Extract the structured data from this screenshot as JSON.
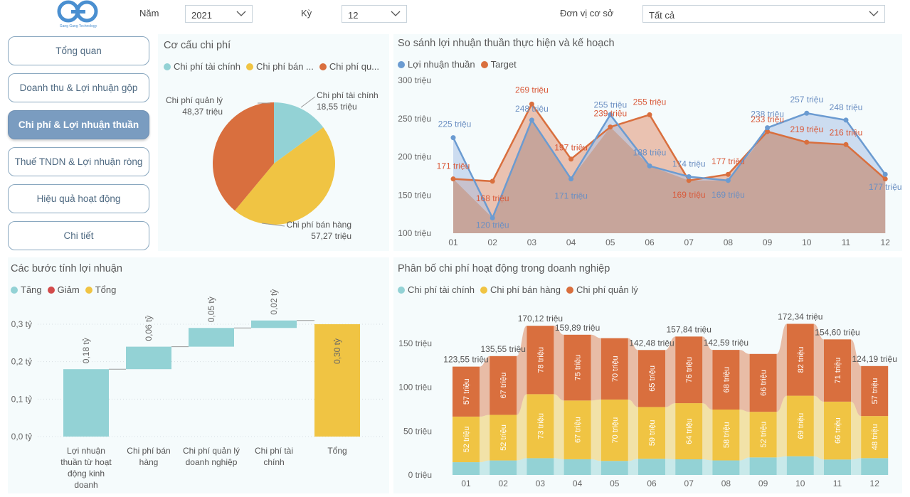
{
  "colors": {
    "teal": "#93d2d5",
    "yellow": "#f0c443",
    "orange": "#d96f3e",
    "blue": "#6b9bd1",
    "red": "#d34b4b",
    "nav_active": "#7a9cc0"
  },
  "header": {
    "logo_text": "Gang Gang Technology",
    "year_label": "Năm",
    "year_value": "2021",
    "period_label": "Kỳ",
    "period_value": "12",
    "unit_label": "Đơn vị cơ sở",
    "unit_value": "Tất cả"
  },
  "nav": [
    {
      "label": "Tổng quan",
      "active": false
    },
    {
      "label": "Doanh thu & Lợi nhuận gộp",
      "active": false
    },
    {
      "label": "Chi phí & Lợi nhuận thuần",
      "active": true
    },
    {
      "label": "Thuế TNDN & Lợi nhuận ròng",
      "active": false
    },
    {
      "label": "Hiệu quả hoạt động",
      "active": false
    },
    {
      "label": "Chi tiết",
      "active": false
    }
  ],
  "pie": {
    "title": "Cơ cấu chi phí",
    "legend": [
      "Chi phí tài chính",
      "Chi phí bán ...",
      "Chi phí qu..."
    ],
    "labels": [
      {
        "name": "Chi phí tài chính",
        "value": "18,55 triệu"
      },
      {
        "name": "Chi phí bán hàng",
        "value": "57,27 triệu"
      },
      {
        "name": "Chi phí quản lý",
        "value": "48,37 triệu"
      }
    ]
  },
  "line": {
    "title": "So sánh lợi nhuận thuần thực hiện và kế hoạch",
    "legend": [
      "Lợi nhuận thuần",
      "Target"
    ],
    "y_ticks": [
      "300 triệu",
      "250 triệu",
      "200 triệu",
      "150 triệu",
      "100 triệu"
    ],
    "x_labels": [
      "01",
      "02",
      "03",
      "04",
      "05",
      "06",
      "07",
      "08",
      "09",
      "10",
      "11",
      "12"
    ],
    "actual_labels": [
      "225 triệu",
      "120 triệu",
      "248 triệu",
      "171 triệu",
      "255 triệu",
      "188 triệu",
      "174 triệu",
      "169 triệu",
      "238 triệu",
      "257 triệu",
      "248 triệu",
      "177 triệu"
    ],
    "target_labels": [
      "171 triệu",
      "168 triệu",
      "269 triệu",
      "197 triệu",
      "239 triệu",
      "255 triệu",
      "169 triệu",
      "177 triệu",
      "233 triệu",
      "219 triệu",
      "216 triệu",
      ""
    ]
  },
  "waterfall": {
    "title": "Các bước tính lợi nhuận",
    "legend": [
      "Tăng",
      "Giảm",
      "Tổng"
    ],
    "y_ticks": [
      "0,3 tỷ",
      "0,2 tỷ",
      "0,1 tỷ",
      "0,0 tỷ"
    ],
    "bar_labels": [
      "0,18 tỷ",
      "0,06 tỷ",
      "0,05 tỷ",
      "0,02 tỷ",
      "0,30 tỷ"
    ],
    "categories": [
      [
        "Lợi nhuận",
        "thuần từ hoạt",
        "động kinh",
        "doanh"
      ],
      [
        "Chi phí bán",
        "hàng"
      ],
      [
        "Chi phí quản lý",
        "doanh nghiệp"
      ],
      [
        "Chi phí tài",
        "chính"
      ],
      [
        "Tổng"
      ]
    ]
  },
  "stacked": {
    "title": "Phân bố chi phí hoạt động trong doanh nghiệp",
    "legend": [
      "Chi phí tài chính",
      "Chi phí bán hàng",
      "Chi phí quản lý"
    ],
    "y_ticks": [
      "150 triệu",
      "100 triệu",
      "50 triệu",
      "0 triệu"
    ],
    "x_labels": [
      "01",
      "02",
      "03",
      "04",
      "05",
      "06",
      "07",
      "08",
      "09",
      "10",
      "11",
      "12"
    ],
    "totals": [
      "123,55 triệu",
      "135,55 triệu",
      "170,12 triệu",
      "159,89 triệu",
      "",
      "142,48 triệu",
      "157,84 triệu",
      "142,59 triệu",
      "",
      "172,34 triệu",
      "154,60 triệu",
      "124,19 triệu"
    ],
    "bottom_labels": [
      "52 triệu",
      "52 triệu",
      "73 triệu",
      "67 triệu",
      "70 triệu",
      "59 triệu",
      "64 triệu",
      "58 triệu",
      "52 triệu",
      "69 triệu",
      "66 triệu",
      "48 triệu"
    ],
    "top_labels": [
      "57 triệu",
      "67 triệu",
      "78 triệu",
      "75 triệu",
      "70 triệu",
      "65 triệu",
      "76 triệu",
      "68 triệu",
      "66 triệu",
      "82 triệu",
      "71 triệu",
      "57 triệu"
    ]
  },
  "chart_data": [
    {
      "type": "pie",
      "title": "Cơ cấu chi phí",
      "categories": [
        "Chi phí tài chính",
        "Chi phí bán hàng",
        "Chi phí quản lý"
      ],
      "values": [
        18.55,
        57.27,
        48.37
      ],
      "legend": "top"
    },
    {
      "type": "line",
      "title": "So sánh lợi nhuận thuần thực hiện và kế hoạch",
      "x": [
        "01",
        "02",
        "03",
        "04",
        "05",
        "06",
        "07",
        "08",
        "09",
        "10",
        "11",
        "12"
      ],
      "ylim": [
        100,
        300
      ],
      "series": [
        {
          "name": "Lợi nhuận thuần",
          "values": [
            225,
            120,
            248,
            171,
            255,
            188,
            174,
            169,
            238,
            257,
            248,
            177
          ]
        },
        {
          "name": "Target",
          "values": [
            171,
            168,
            269,
            197,
            239,
            255,
            169,
            177,
            233,
            219,
            216,
            171
          ]
        }
      ],
      "legend": "top-left"
    },
    {
      "type": "bar",
      "title": "Các bước tính lợi nhuận",
      "categories": [
        "Lợi nhuận thuần từ hoạt động kinh doanh",
        "Chi phí bán hàng",
        "Chi phí quản lý doanh nghiệp",
        "Chi phí tài chính",
        "Tổng"
      ],
      "values": [
        0.18,
        0.06,
        0.05,
        0.02,
        0.3
      ],
      "ylim": [
        0,
        0.3
      ],
      "legend": "top-left"
    },
    {
      "type": "bar",
      "title": "Phân bố chi phí hoạt động trong doanh nghiệp",
      "categories": [
        "01",
        "02",
        "03",
        "04",
        "05",
        "06",
        "07",
        "08",
        "09",
        "10",
        "11",
        "12"
      ],
      "ylim": [
        0,
        170
      ],
      "series": [
        {
          "name": "Chi phí tài chính",
          "values": [
            14.55,
            16.55,
            19.12,
            17.89,
            16,
            18.48,
            17.84,
            16.59,
            20,
            21.34,
            17.6,
            19.19
          ]
        },
        {
          "name": "Chi phí bán hàng",
          "values": [
            52,
            52,
            73,
            67,
            70,
            59,
            64,
            58,
            52,
            69,
            66,
            48
          ]
        },
        {
          "name": "Chi phí quản lý",
          "values": [
            57,
            67,
            78,
            75,
            70,
            65,
            76,
            68,
            66,
            82,
            71,
            57
          ]
        }
      ],
      "legend": "top-left"
    }
  ]
}
